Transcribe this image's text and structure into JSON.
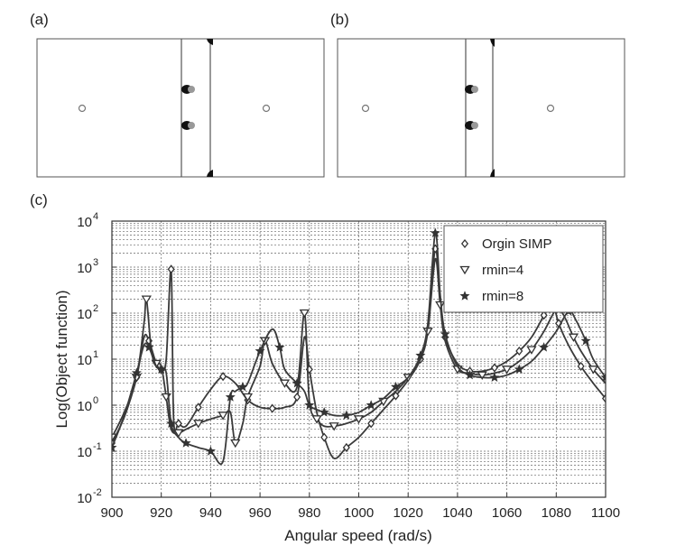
{
  "panels": {
    "a": {
      "label": "(a)"
    },
    "b": {
      "label": "(b)"
    },
    "c": {
      "label": "(c)"
    }
  },
  "chart_data": {
    "type": "line",
    "xlabel": "Angular speed (rad/s)",
    "ylabel": "Log(Object function)",
    "xlim": [
      900,
      1100
    ],
    "ylim": [
      0.01,
      10000
    ],
    "yscale": "log",
    "grid": true,
    "legend_position": "top-right",
    "x_ticks": [
      900,
      920,
      940,
      960,
      980,
      1000,
      1020,
      1040,
      1060,
      1080,
      1100
    ],
    "y_ticks": [
      {
        "value": 0.01,
        "base": "10",
        "exp": "-2"
      },
      {
        "value": 0.1,
        "base": "10",
        "exp": "-1"
      },
      {
        "value": 1,
        "base": "10",
        "exp": "0"
      },
      {
        "value": 10,
        "base": "10",
        "exp": "1"
      },
      {
        "value": 100,
        "base": "10",
        "exp": "2"
      },
      {
        "value": 1000,
        "base": "10",
        "exp": "3"
      },
      {
        "value": 10000,
        "base": "10",
        "exp": "4"
      }
    ],
    "series": [
      {
        "name": "Orgin SIMP",
        "marker": "diamond",
        "points": [
          [
            900,
            0.15
          ],
          [
            905,
            0.55
          ],
          [
            910,
            4
          ],
          [
            913,
            30
          ],
          [
            915,
            25
          ],
          [
            918,
            8
          ],
          [
            920,
            6
          ],
          [
            922,
            10
          ],
          [
            924,
            900
          ],
          [
            925,
            0.5
          ],
          [
            927,
            0.4
          ],
          [
            930,
            0.35
          ],
          [
            935,
            0.9
          ],
          [
            940,
            2.2
          ],
          [
            945,
            4.2
          ],
          [
            950,
            3
          ],
          [
            955,
            1.3
          ],
          [
            960,
            0.9
          ],
          [
            965,
            0.85
          ],
          [
            970,
            0.9
          ],
          [
            975,
            1.5
          ],
          [
            978,
            30
          ],
          [
            980,
            6
          ],
          [
            983,
            0.7
          ],
          [
            986,
            0.2
          ],
          [
            990,
            0.07
          ],
          [
            995,
            0.12
          ],
          [
            1000,
            0.2
          ],
          [
            1005,
            0.4
          ],
          [
            1010,
            0.8
          ],
          [
            1015,
            1.6
          ],
          [
            1020,
            3.5
          ],
          [
            1025,
            10
          ],
          [
            1028,
            50
          ],
          [
            1031,
            2500
          ],
          [
            1033,
            200
          ],
          [
            1035,
            30
          ],
          [
            1040,
            8
          ],
          [
            1045,
            5.5
          ],
          [
            1050,
            5.5
          ],
          [
            1055,
            6.5
          ],
          [
            1060,
            9
          ],
          [
            1065,
            15
          ],
          [
            1070,
            30
          ],
          [
            1075,
            90
          ],
          [
            1078,
            200
          ],
          [
            1081,
            60
          ],
          [
            1085,
            20
          ],
          [
            1090,
            7
          ],
          [
            1095,
            3
          ],
          [
            1100,
            1.4
          ]
        ]
      },
      {
        "name": "rmin=4",
        "marker": "triangle-down",
        "points": [
          [
            900,
            0.2
          ],
          [
            905,
            0.7
          ],
          [
            910,
            4
          ],
          [
            913,
            60
          ],
          [
            914,
            200
          ],
          [
            916,
            15
          ],
          [
            918,
            8
          ],
          [
            920,
            7
          ],
          [
            922,
            1.5
          ],
          [
            924,
            0.3
          ],
          [
            927,
            0.25
          ],
          [
            930,
            0.3
          ],
          [
            935,
            0.4
          ],
          [
            940,
            0.5
          ],
          [
            945,
            0.6
          ],
          [
            948,
            0.7
          ],
          [
            950,
            0.15
          ],
          [
            953,
            0.4
          ],
          [
            955,
            1.5
          ],
          [
            960,
            7
          ],
          [
            962,
            25
          ],
          [
            965,
            8
          ],
          [
            970,
            3
          ],
          [
            975,
            2.5
          ],
          [
            978,
            100
          ],
          [
            980,
            1.2
          ],
          [
            983,
            0.5
          ],
          [
            986,
            0.35
          ],
          [
            990,
            0.35
          ],
          [
            995,
            0.4
          ],
          [
            1000,
            0.5
          ],
          [
            1005,
            0.7
          ],
          [
            1010,
            1.2
          ],
          [
            1015,
            2
          ],
          [
            1020,
            4
          ],
          [
            1025,
            10
          ],
          [
            1028,
            40
          ],
          [
            1031,
            1500
          ],
          [
            1033,
            150
          ],
          [
            1035,
            25
          ],
          [
            1040,
            6
          ],
          [
            1045,
            5
          ],
          [
            1050,
            4.5
          ],
          [
            1055,
            5
          ],
          [
            1060,
            6
          ],
          [
            1065,
            9
          ],
          [
            1070,
            16
          ],
          [
            1075,
            40
          ],
          [
            1080,
            120
          ],
          [
            1083,
            90
          ],
          [
            1087,
            30
          ],
          [
            1090,
            15
          ],
          [
            1095,
            6
          ],
          [
            1100,
            3
          ]
        ]
      },
      {
        "name": "rmin=8",
        "marker": "star",
        "points": [
          [
            900,
            0.12
          ],
          [
            905,
            0.6
          ],
          [
            910,
            5
          ],
          [
            913,
            20
          ],
          [
            915,
            18
          ],
          [
            918,
            7
          ],
          [
            920,
            6
          ],
          [
            922,
            5
          ],
          [
            924,
            0.4
          ],
          [
            927,
            0.2
          ],
          [
            930,
            0.15
          ],
          [
            935,
            0.12
          ],
          [
            940,
            0.1
          ],
          [
            945,
            0.06
          ],
          [
            948,
            1.5
          ],
          [
            950,
            2
          ],
          [
            953,
            2.5
          ],
          [
            955,
            3
          ],
          [
            960,
            15
          ],
          [
            965,
            45
          ],
          [
            968,
            18
          ],
          [
            970,
            6
          ],
          [
            975,
            3
          ],
          [
            978,
            2
          ],
          [
            980,
            1
          ],
          [
            983,
            0.8
          ],
          [
            986,
            0.7
          ],
          [
            990,
            0.6
          ],
          [
            995,
            0.6
          ],
          [
            1000,
            0.7
          ],
          [
            1005,
            1
          ],
          [
            1010,
            1.4
          ],
          [
            1015,
            2.5
          ],
          [
            1020,
            4
          ],
          [
            1025,
            12
          ],
          [
            1028,
            60
          ],
          [
            1031,
            5500
          ],
          [
            1033,
            250
          ],
          [
            1035,
            35
          ],
          [
            1040,
            7
          ],
          [
            1045,
            4.5
          ],
          [
            1050,
            4
          ],
          [
            1055,
            4
          ],
          [
            1060,
            4.5
          ],
          [
            1065,
            6
          ],
          [
            1070,
            9
          ],
          [
            1075,
            18
          ],
          [
            1080,
            40
          ],
          [
            1085,
            110
          ],
          [
            1088,
            70
          ],
          [
            1092,
            25
          ],
          [
            1095,
            10
          ],
          [
            1100,
            4
          ]
        ]
      }
    ]
  }
}
